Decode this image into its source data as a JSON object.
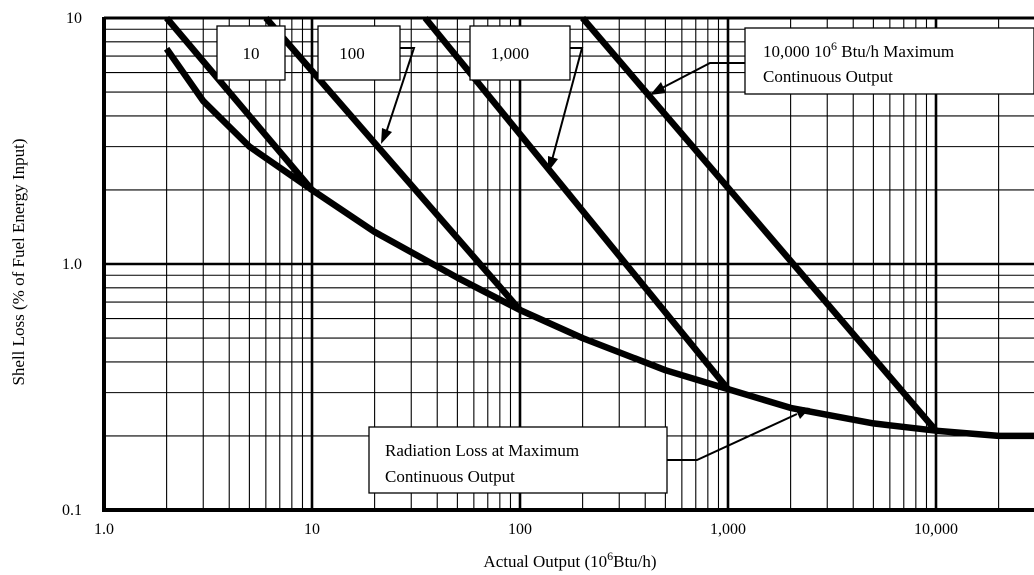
{
  "chart_data": {
    "type": "line",
    "scale": "log-log",
    "xlabel_main": "Actual Output (10",
    "xlabel_sup": "6",
    "xlabel_tail": "Btu/h)",
    "ylabel": "Shell Loss (% of Fuel Energy Input)",
    "xlim": [
      1,
      30000
    ],
    "ylim": [
      0.1,
      10
    ],
    "x_ticks": [
      {
        "value": 1,
        "label": "1.0"
      },
      {
        "value": 10,
        "label": "10"
      },
      {
        "value": 100,
        "label": "100"
      },
      {
        "value": 1000,
        "label": "1,000"
      },
      {
        "value": 10000,
        "label": "10,000"
      }
    ],
    "y_ticks": [
      {
        "value": 0.1,
        "label": "0.1"
      },
      {
        "value": 1,
        "label": "1.0"
      },
      {
        "value": 10,
        "label": "10"
      }
    ],
    "grid": true,
    "series": [
      {
        "name": "10",
        "x": [
          2,
          10
        ],
        "y": [
          10,
          2
        ]
      },
      {
        "name": "100",
        "x": [
          6,
          100
        ],
        "y": [
          10,
          0.65
        ]
      },
      {
        "name": "1,000",
        "x": [
          35,
          1000
        ],
        "y": [
          10,
          0.31
        ]
      },
      {
        "name": "10,000",
        "x": [
          200,
          10000
        ],
        "y": [
          10,
          0.21
        ]
      },
      {
        "name": "Radiation Loss at Maximum Continuous Output",
        "x": [
          2,
          3,
          5,
          10,
          20,
          50,
          100,
          200,
          500,
          1000,
          2000,
          5000,
          10000,
          20000,
          30000
        ],
        "y": [
          7.5,
          4.6,
          3.0,
          2.0,
          1.35,
          0.88,
          0.65,
          0.5,
          0.37,
          0.31,
          0.26,
          0.225,
          0.21,
          0.2,
          0.2
        ]
      }
    ],
    "annotations": {
      "label_10": "10",
      "label_100": "100",
      "label_1000": "1,000",
      "max_line1_a": "10,000 10",
      "max_line1_sup": "6",
      "max_line1_b": " Btu/h Maximum",
      "max_line2": "Continuous Output",
      "rad_line1": "Radiation Loss at Maximum",
      "rad_line2": "Continuous Output"
    }
  }
}
